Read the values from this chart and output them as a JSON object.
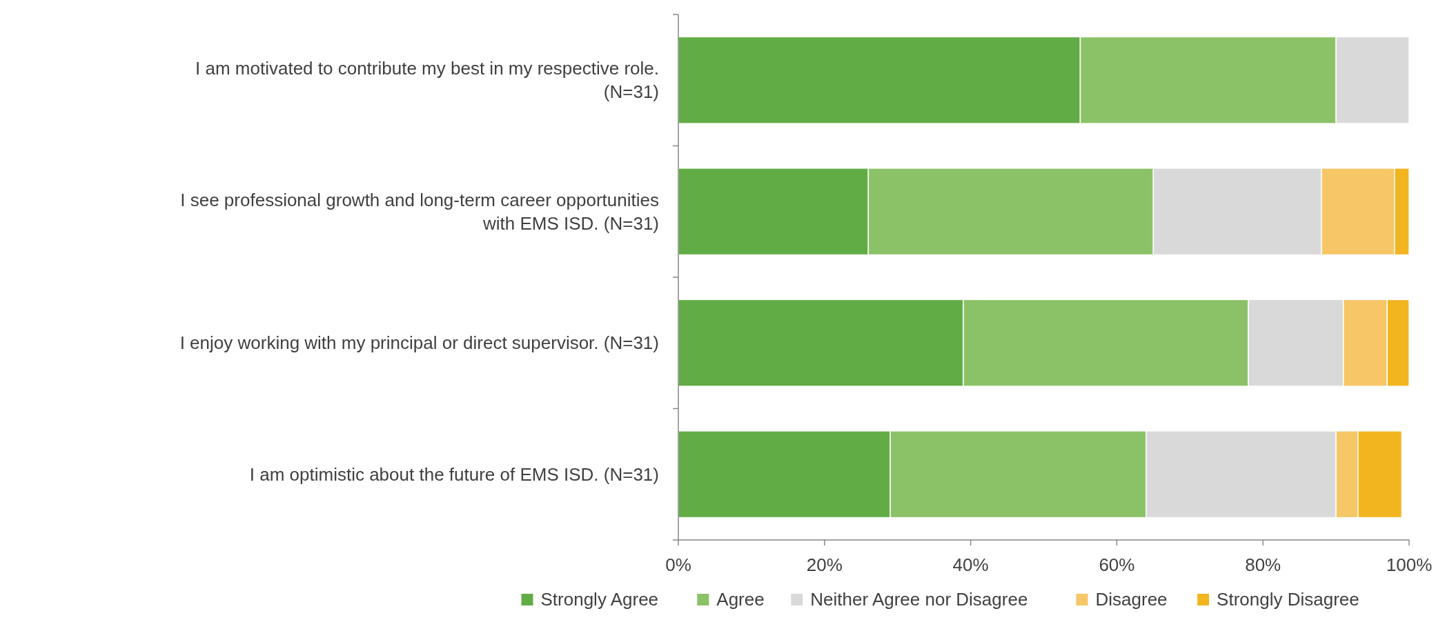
{
  "chart_data": {
    "type": "bar",
    "orientation": "horizontal",
    "stacked": true,
    "categories": [
      "I am motivated to contribute my best in my respective role. (N=31)",
      "I see professional growth and long-term career opportunities with EMS ISD. (N=31)",
      "I enjoy working with my principal or direct supervisor. (N=31)",
      "I am optimistic about the future of EMS ISD. (N=31)"
    ],
    "series": [
      {
        "name": "Strongly Agree",
        "color": "#62ac46",
        "values": [
          55,
          26,
          39,
          29
        ]
      },
      {
        "name": "Agree",
        "color": "#8cc267",
        "values": [
          35,
          39,
          39,
          35
        ]
      },
      {
        "name": "Neither Agree nor Disagree",
        "color": "#d9d9d9",
        "values": [
          10,
          23,
          13,
          26
        ]
      },
      {
        "name": "Disagree",
        "color": "#f6c667",
        "values": [
          0,
          10,
          6,
          3
        ]
      },
      {
        "name": "Strongly Disagree",
        "color": "#f2b51f",
        "values": [
          0,
          2,
          3,
          6
        ]
      }
    ],
    "xlim": [
      0,
      100
    ],
    "xticks": [
      {
        "value": 0,
        "label": "0%"
      },
      {
        "value": 20,
        "label": "20%"
      },
      {
        "value": 40,
        "label": "40%"
      },
      {
        "value": 60,
        "label": "60%"
      },
      {
        "value": 80,
        "label": "80%"
      },
      {
        "value": 100,
        "label": "100%"
      }
    ],
    "grid": false,
    "legend": "bottom"
  }
}
